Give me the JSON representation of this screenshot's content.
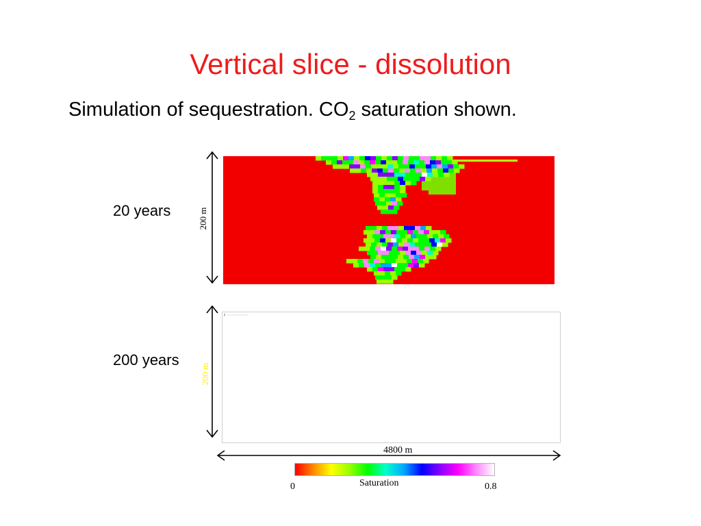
{
  "slide": {
    "title": "Vertical slice - dissolution",
    "subtitle_prefix": "Simulation of sequestration.   CO",
    "subtitle_subscript": "2",
    "subtitle_suffix": " saturation shown."
  },
  "panels": [
    {
      "label": "20 years",
      "height_label": "200 m"
    },
    {
      "label": "200 years",
      "height_label": "200 m"
    }
  ],
  "width_label": "4800 m",
  "colorbar": {
    "title": "Saturation",
    "min_label": "0",
    "max_label": "0.8",
    "stops": [
      "#ff0000",
      "#ff8800",
      "#ffff00",
      "#99ff00",
      "#00ff00",
      "#00ffcc",
      "#00aaff",
      "#0000ff",
      "#8800ff",
      "#ff00ff",
      "#ff88ff",
      "#ffffff"
    ]
  },
  "colors": {
    "title": "#ee1c1c",
    "background_red": "#f20000",
    "height_label_2": "#ffee00"
  }
}
